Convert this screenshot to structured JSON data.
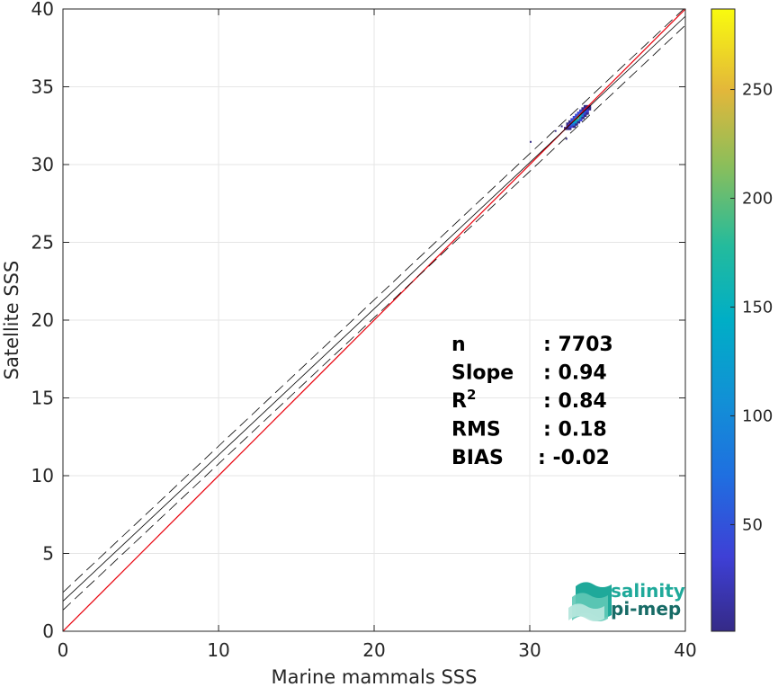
{
  "chart_data": {
    "type": "heatmap",
    "title": "",
    "xlabel": "Marine mammals SSS",
    "ylabel": "Satellite SSS",
    "xlim": [
      0,
      40
    ],
    "ylim": [
      0,
      40
    ],
    "xticks": [
      "0",
      "10",
      "20",
      "30",
      "40"
    ],
    "yticks": [
      "0",
      "5",
      "10",
      "15",
      "20",
      "25",
      "30",
      "35",
      "40"
    ],
    "grid": true,
    "colorbar": {
      "range": [
        1,
        287
      ],
      "ticks": [
        "50",
        "100",
        "150",
        "200",
        "250"
      ],
      "tick_values": [
        50,
        100,
        150,
        200,
        250
      ],
      "colormap": "parula"
    },
    "identity_line": {
      "color": "#e8000b",
      "points": [
        [
          0,
          0
        ],
        [
          40,
          40
        ]
      ]
    },
    "fit_line": {
      "slope": 0.94,
      "intercept": 1.93,
      "style": "solid",
      "color": "#000000"
    },
    "fit_bounds": [
      {
        "slope": 0.94,
        "intercept": 2.5,
        "style": "dashed",
        "color": "#000000"
      },
      {
        "slope": 0.94,
        "intercept": 1.36,
        "style": "dashed",
        "color": "#000000"
      }
    ],
    "density_cluster": {
      "x_range": [
        32.2,
        33.9
      ],
      "y_range": [
        31.8,
        34.0
      ],
      "peak": [
        33.0,
        32.9
      ]
    },
    "stats": [
      {
        "label": "n",
        "value": ": 7703"
      },
      {
        "label": "Slope",
        "value": ": 0.94"
      },
      {
        "label": "R",
        "sup": "2",
        "value": ": 0.84"
      },
      {
        "label": "RMS",
        "value": ": 0.18"
      },
      {
        "label": "BIAS",
        "value": ": -0.02"
      }
    ]
  },
  "logo": {
    "line1": "salinity",
    "line2": "pi-mep",
    "color_primary": "#1fa99a",
    "color_secondary": "#176b66"
  }
}
